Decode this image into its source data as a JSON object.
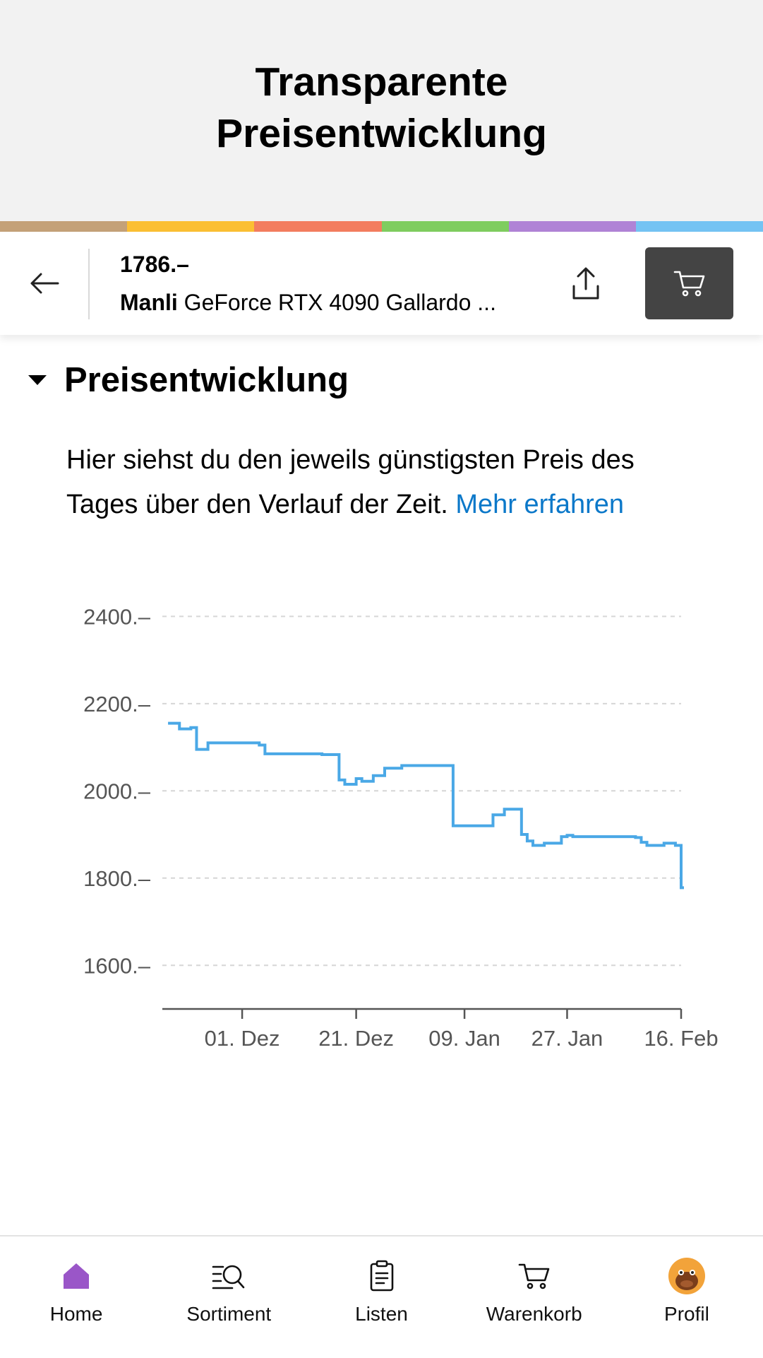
{
  "banner": {
    "title": "Transparente Preisentwicklung"
  },
  "stripe_colors": [
    "#c4a178",
    "#fbbf33",
    "#f37d5f",
    "#7fcd5f",
    "#b083d6",
    "#74c3f3"
  ],
  "product": {
    "price": "1786.–",
    "brand": "Manli",
    "name": "GeForce RTX 4090 Gallardo ..."
  },
  "section": {
    "title": "Preisentwicklung",
    "description": "Hier siehst du den jeweils günstigsten Preis des Tages über den Verlauf der Zeit.",
    "link_label": "Mehr erfahren"
  },
  "chart_data": {
    "type": "line",
    "step": true,
    "line_color": "#4aa8e6",
    "grid": true,
    "y_ticks": [
      {
        "value": 2400,
        "label": "2400.–"
      },
      {
        "value": 2200,
        "label": "2200.–"
      },
      {
        "value": 2000,
        "label": "2000.–"
      },
      {
        "value": 1800,
        "label": "1800.–"
      },
      {
        "value": 1600,
        "label": "1600.–"
      }
    ],
    "x_ticks": [
      {
        "date": "2023-12-01",
        "label": "01. Dez"
      },
      {
        "date": "2023-12-21",
        "label": "21. Dez"
      },
      {
        "date": "2024-01-09",
        "label": "09. Jan"
      },
      {
        "date": "2024-01-27",
        "label": "27. Jan"
      },
      {
        "date": "2024-02-16",
        "label": "16. Feb"
      }
    ],
    "xlim": [
      "2023-11-17",
      "2024-02-16"
    ],
    "ylim": [
      1500,
      2420
    ],
    "points": [
      {
        "x": "2023-11-18",
        "y": 2155
      },
      {
        "x": "2023-11-20",
        "y": 2142
      },
      {
        "x": "2023-11-22",
        "y": 2145
      },
      {
        "x": "2023-11-23",
        "y": 2095
      },
      {
        "x": "2023-11-25",
        "y": 2110
      },
      {
        "x": "2023-12-04",
        "y": 2105
      },
      {
        "x": "2023-12-05",
        "y": 2085
      },
      {
        "x": "2023-12-15",
        "y": 2083
      },
      {
        "x": "2023-12-18",
        "y": 2025
      },
      {
        "x": "2023-12-19",
        "y": 2015
      },
      {
        "x": "2023-12-21",
        "y": 2028
      },
      {
        "x": "2023-12-22",
        "y": 2022
      },
      {
        "x": "2023-12-24",
        "y": 2035
      },
      {
        "x": "2023-12-26",
        "y": 2052
      },
      {
        "x": "2023-12-29",
        "y": 2058
      },
      {
        "x": "2024-01-07",
        "y": 1920
      },
      {
        "x": "2024-01-14",
        "y": 1945
      },
      {
        "x": "2024-01-16",
        "y": 1958
      },
      {
        "x": "2024-01-19",
        "y": 1900
      },
      {
        "x": "2024-01-20",
        "y": 1885
      },
      {
        "x": "2024-01-21",
        "y": 1875
      },
      {
        "x": "2024-01-23",
        "y": 1880
      },
      {
        "x": "2024-01-26",
        "y": 1895
      },
      {
        "x": "2024-01-27",
        "y": 1898
      },
      {
        "x": "2024-01-28",
        "y": 1895
      },
      {
        "x": "2024-02-08",
        "y": 1893
      },
      {
        "x": "2024-02-09",
        "y": 1882
      },
      {
        "x": "2024-02-10",
        "y": 1875
      },
      {
        "x": "2024-02-13",
        "y": 1880
      },
      {
        "x": "2024-02-15",
        "y": 1875
      },
      {
        "x": "2024-02-16",
        "y": 1778
      }
    ]
  },
  "bottom_nav": {
    "items": [
      {
        "label": "Home",
        "icon": "home-icon",
        "active": true
      },
      {
        "label": "Sortiment",
        "icon": "assortment-search-icon",
        "active": false
      },
      {
        "label": "Listen",
        "icon": "list-clipboard-icon",
        "active": false
      },
      {
        "label": "Warenkorb",
        "icon": "cart-icon",
        "active": false
      },
      {
        "label": "Profil",
        "icon": "profile-avatar-icon",
        "active": false
      }
    ],
    "active_color": "#9a56c8"
  }
}
